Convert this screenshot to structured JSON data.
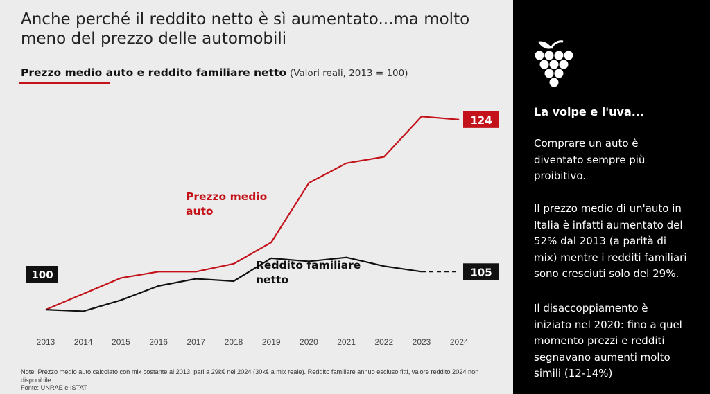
{
  "slide": {
    "title": "Anche perché il reddito netto è sì aumentato...ma molto meno del prezzo delle automobili",
    "subtitle_bold": "Prezzo medio auto e reddito familiare netto",
    "subtitle_note": "(Valori reali, 2013 = 100)",
    "footnote_lines": [
      "Note: Prezzo medio auto calcolato con mix costante al 2013, pari a 29k€ nel 2024 (30k€ a mix reale). Reddito familiare annuo escluso fitti, valore reddito 2024 non disponibile",
      "Fonte: UNRAE e ISTAT"
    ]
  },
  "chart_data": {
    "type": "line",
    "x": [
      "2013",
      "2014",
      "2015",
      "2016",
      "2017",
      "2018",
      "2019",
      "2020",
      "2021",
      "2022",
      "2023",
      "2024"
    ],
    "ylim": [
      98,
      126
    ],
    "grid": false,
    "series": [
      {
        "name": "Prezzo medio auto",
        "label_lines": [
          "Prezzo medio",
          "auto"
        ],
        "color": "#c4121a",
        "values": [
          100,
          102,
          104,
          104.8,
          104.8,
          105.8,
          108.5,
          116,
          118.5,
          119.3,
          124.4,
          124
        ],
        "end_label": "124",
        "dashed_last_segment": false
      },
      {
        "name": "Reddito familiare netto",
        "label_lines": [
          "Reddito familiare",
          "netto"
        ],
        "color": "#111111",
        "values": [
          100,
          99.8,
          101.2,
          103,
          103.9,
          103.6,
          106.5,
          106.1,
          106.6,
          105.5,
          104.8,
          104.8
        ],
        "end_label": "105",
        "dashed_last_segment": true
      }
    ],
    "start_label": "100"
  },
  "sidebar": {
    "heading": "La volpe e l'uva...",
    "paragraphs": [
      [
        "Comprare un auto è",
        "diventato sempre più",
        "proibitivo."
      ],
      [
        "Il prezzo medio di un'auto in",
        "Italia è infatti aumentato del",
        "52% dal 2013 (a parità di",
        "mix) mentre i redditi familiari",
        "sono cresciuti solo del 29%."
      ],
      [
        "Il disaccoppiamento è",
        "iniziato nel 2020: fino a quel",
        "momento prezzi e redditi",
        "segnavano aumenti molto",
        "simili (12-14%)"
      ]
    ],
    "icon": "grape-icon"
  }
}
